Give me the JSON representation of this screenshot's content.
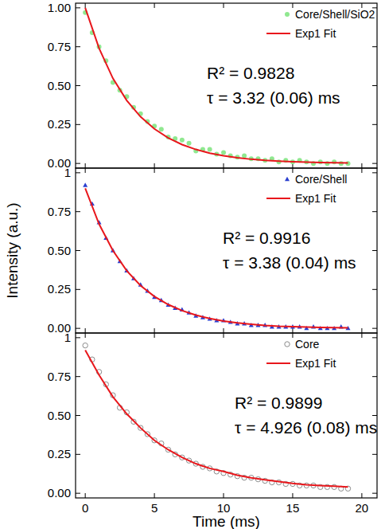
{
  "chart_data": [
    {
      "type": "scatter",
      "xlim": [
        -0.7,
        21.1
      ],
      "ylim": [
        -0.03,
        1.03
      ],
      "xticks": [
        0,
        5,
        10,
        15,
        20
      ],
      "yticks": [
        {
          "value": 0,
          "label": "0.00"
        },
        {
          "value": 0.25,
          "label": "0.25"
        },
        {
          "value": 0.5,
          "label": "0.50"
        },
        {
          "value": 0.75,
          "label": "0.75"
        },
        {
          "value": 1,
          "label": "1.00"
        }
      ],
      "tick_labels": "y",
      "legend": "upper right",
      "annotations": [
        "R² = 0.9828",
        "τ  = 3.32 (0.06) ms"
      ],
      "series": [
        {
          "name": "Core/Shell/SiO2",
          "color": "#90e890",
          "marker": "circle",
          "x": [
            0,
            0.5,
            1,
            1.5,
            2,
            2.5,
            3,
            3.5,
            4,
            4.5,
            5,
            5.5,
            6,
            6.5,
            7,
            7.5,
            8,
            8.5,
            9,
            9.5,
            10,
            10.5,
            11,
            11.5,
            12,
            12.5,
            13,
            13.5,
            14,
            14.5,
            15,
            15.5,
            16,
            16.5,
            17,
            17.5,
            18,
            18.5,
            19
          ],
          "values": [
            0.97,
            0.84,
            0.75,
            0.66,
            0.52,
            0.47,
            0.43,
            0.36,
            0.32,
            0.27,
            0.24,
            0.22,
            0.17,
            0.16,
            0.15,
            0.13,
            0.08,
            0.09,
            0.09,
            0.06,
            0.07,
            0.05,
            0.04,
            0.05,
            0.03,
            0.03,
            0.02,
            0.03,
            0.01,
            0.02,
            0.01,
            0.02,
            0.01,
            0.0,
            0.01,
            0.0,
            0.01,
            0.0,
            0.0
          ]
        },
        {
          "name": "Exp1 Fit",
          "color": "#e8171c",
          "type": "line",
          "line_style": "solid",
          "x": [
            0,
            1,
            2,
            3,
            4,
            5,
            6,
            7,
            8,
            9,
            10,
            11,
            12,
            13,
            14,
            15,
            16,
            17,
            18,
            19
          ],
          "values": [
            1.0,
            0.74,
            0.547,
            0.405,
            0.3,
            0.222,
            0.164,
            0.121,
            0.09,
            0.066,
            0.049,
            0.036,
            0.027,
            0.02,
            0.015,
            0.011,
            0.008,
            0.006,
            0.004,
            0.003
          ]
        }
      ]
    },
    {
      "type": "scatter",
      "ylabel": "Intensity (a.u.)",
      "xlim": [
        -0.7,
        21.1
      ],
      "ylim": [
        -0.03,
        1.03
      ],
      "xticks": [
        0,
        5,
        10,
        15,
        20
      ],
      "yticks": [
        {
          "value": 0,
          "label": "0.00"
        },
        {
          "value": 0.25,
          "label": "0.25"
        },
        {
          "value": 0.5,
          "label": "0.50"
        },
        {
          "value": 0.75,
          "label": "0.75"
        },
        1
      ],
      "tick_labels": "y",
      "legend": "upper right",
      "annotations": [
        "R² = 0.9916",
        "τ  = 3.38 (0.04) ms"
      ],
      "series": [
        {
          "name": "Core/Shell",
          "color": "#2b3fcf",
          "marker": "triangle",
          "x": [
            0,
            0.5,
            1,
            1.5,
            2,
            2.5,
            3,
            3.5,
            4,
            4.5,
            5,
            5.5,
            6,
            6.5,
            7,
            7.5,
            8,
            8.5,
            9,
            9.5,
            10,
            10.5,
            11,
            11.5,
            12,
            12.5,
            13,
            13.5,
            14,
            14.5,
            15,
            15.5,
            16,
            16.5,
            17,
            17.5,
            18,
            18.5,
            19
          ],
          "values": [
            0.92,
            0.8,
            0.68,
            0.58,
            0.5,
            0.43,
            0.37,
            0.32,
            0.28,
            0.24,
            0.2,
            0.18,
            0.15,
            0.13,
            0.12,
            0.1,
            0.08,
            0.07,
            0.06,
            0.05,
            0.05,
            0.04,
            0.03,
            0.03,
            0.02,
            0.02,
            0.02,
            0.01,
            0.01,
            0.01,
            0.01,
            0.01,
            0.0,
            0.01,
            0.0,
            0.0,
            0.0,
            0.01,
            0.0
          ]
        },
        {
          "name": "Exp1 Fit",
          "color": "#e8171c",
          "type": "line",
          "line_style": "solid",
          "x": [
            0,
            1,
            2,
            3,
            4,
            5,
            6,
            7,
            8,
            9,
            10,
            11,
            12,
            13,
            14,
            15,
            16,
            17,
            18,
            19
          ],
          "values": [
            0.9,
            0.67,
            0.5,
            0.37,
            0.275,
            0.205,
            0.153,
            0.114,
            0.085,
            0.063,
            0.047,
            0.035,
            0.026,
            0.019,
            0.014,
            0.011,
            0.008,
            0.006,
            0.004,
            0.003
          ]
        }
      ]
    },
    {
      "type": "scatter",
      "xlabel": "Time (ms)",
      "xlim": [
        -0.7,
        21.1
      ],
      "ylim": [
        -0.03,
        1.03
      ],
      "xticks": [
        0,
        5,
        10,
        15,
        20
      ],
      "yticks": [
        {
          "value": 0,
          "label": "0.00"
        },
        {
          "value": 0.25,
          "label": "0.25"
        },
        {
          "value": 0.5,
          "label": "0.50"
        },
        {
          "value": 0.75,
          "label": "0.75"
        },
        1
      ],
      "legend": "upper right",
      "annotations": [
        "R² = 0.9899",
        "τ  = 4.926 (0.08) ms"
      ],
      "series": [
        {
          "name": "Core",
          "color": "#8c8c8c",
          "marker": "open_circle",
          "x": [
            0,
            0.5,
            1,
            1.5,
            2,
            2.5,
            3,
            3.5,
            4,
            4.5,
            5,
            5.5,
            6,
            6.5,
            7,
            7.5,
            8,
            8.5,
            9,
            9.5,
            10,
            10.5,
            11,
            11.5,
            12,
            12.5,
            13,
            13.5,
            14,
            14.5,
            15,
            15.5,
            16,
            16.5,
            17,
            17.5,
            18,
            18.5,
            19
          ],
          "values": [
            0.95,
            0.86,
            0.78,
            0.7,
            0.63,
            0.55,
            0.52,
            0.46,
            0.42,
            0.38,
            0.34,
            0.32,
            0.28,
            0.25,
            0.23,
            0.21,
            0.19,
            0.17,
            0.16,
            0.14,
            0.13,
            0.12,
            0.11,
            0.1,
            0.1,
            0.09,
            0.08,
            0.07,
            0.07,
            0.06,
            0.06,
            0.05,
            0.05,
            0.05,
            0.04,
            0.04,
            0.04,
            0.03,
            0.03
          ]
        },
        {
          "name": "Exp1 Fit",
          "color": "#e8171c",
          "type": "line",
          "line_style": "solid",
          "x": [
            0,
            1,
            2,
            3,
            4,
            5,
            6,
            7,
            8,
            9,
            10,
            11,
            12,
            13,
            14,
            15,
            16,
            17,
            18,
            19
          ],
          "values": [
            0.92,
            0.76,
            0.62,
            0.51,
            0.42,
            0.34,
            0.28,
            0.23,
            0.19,
            0.16,
            0.14,
            0.116,
            0.099,
            0.086,
            0.075,
            0.063,
            0.055,
            0.05,
            0.045,
            0.04
          ]
        }
      ]
    }
  ]
}
